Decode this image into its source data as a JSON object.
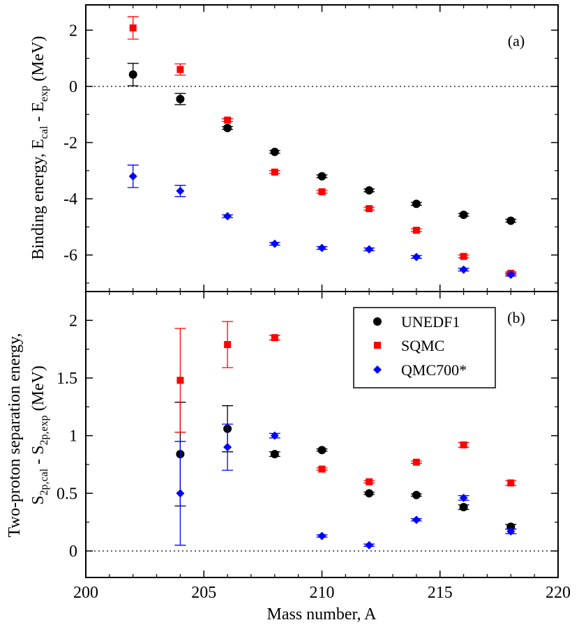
{
  "figure": {
    "xlabel": "Mass number, A",
    "xticks": [
      "200",
      "205",
      "210",
      "215",
      "220"
    ]
  },
  "chart_data": [
    {
      "type": "scatter",
      "panel_label": "(a)",
      "ylabel": {
        "main": "Binding energy, E",
        "sub1": "cal",
        "mid": " - E",
        "sub2": "exp",
        "tail": " (MeV)"
      },
      "xlim": [
        200,
        220
      ],
      "ylim": [
        -7.3,
        2.9
      ],
      "yticks": [
        "2",
        "0",
        "-2",
        "-4",
        "-6"
      ],
      "ytick_values": [
        2,
        0,
        -2,
        -4,
        -6
      ],
      "zero_line": true,
      "x": [
        202,
        204,
        206,
        208,
        210,
        212,
        214,
        216,
        218
      ],
      "series": [
        {
          "name": "UNEDF1",
          "color": "#000000",
          "marker": "circle",
          "values": [
            0.42,
            -0.45,
            -1.48,
            -2.33,
            -3.2,
            -3.7,
            -4.18,
            -4.57,
            -4.78
          ],
          "errors": [
            0.4,
            0.2,
            0.05,
            0.05,
            0.05,
            0.05,
            0.05,
            0.05,
            0.05
          ]
        },
        {
          "name": "SQMC",
          "color": "#ff0000",
          "marker": "square",
          "values": [
            2.08,
            0.6,
            -1.2,
            -3.05,
            -3.75,
            -4.35,
            -5.12,
            -6.05,
            -6.65
          ],
          "errors": [
            0.4,
            0.2,
            0.05,
            0.05,
            0.05,
            0.05,
            0.05,
            0.05,
            0.05
          ]
        },
        {
          "name": "QMC700*",
          "color": "#0000ff",
          "marker": "diamond",
          "values": [
            -3.2,
            -3.72,
            -4.62,
            -5.6,
            -5.75,
            -5.8,
            -6.07,
            -6.52,
            -6.7
          ],
          "errors": [
            0.4,
            0.2,
            0.05,
            0.05,
            0.05,
            0.05,
            0.05,
            0.05,
            0.05
          ]
        }
      ]
    },
    {
      "type": "scatter",
      "panel_label": "(b)",
      "ylabel": {
        "line1": "Two-proton separation energy,",
        "main": "S",
        "sub1": "2p,cal",
        "mid": " - S",
        "sub2": "2p,exp",
        "tail": " (MeV)"
      },
      "xlim": [
        200,
        220
      ],
      "ylim": [
        -0.23,
        2.25
      ],
      "yticks": [
        "2",
        "1.5",
        "1",
        "0.5",
        "0"
      ],
      "ytick_values": [
        2,
        1.5,
        1,
        0.5,
        0
      ],
      "zero_line": true,
      "legend": {
        "position": "top-right",
        "labels": [
          "UNEDF1",
          "SQMC",
          "QMC700*"
        ]
      },
      "x": [
        204,
        206,
        208,
        210,
        212,
        214,
        216,
        218
      ],
      "series": [
        {
          "name": "UNEDF1",
          "color": "#000000",
          "marker": "circle",
          "values": [
            0.84,
            1.06,
            0.84,
            0.875,
            0.5,
            0.485,
            0.38,
            0.21
          ],
          "errors": [
            0.45,
            0.2,
            0.02,
            0.01,
            0.01,
            0.01,
            0.02,
            0.02
          ]
        },
        {
          "name": "SQMC",
          "color": "#ff0000",
          "marker": "square",
          "values": [
            1.48,
            1.79,
            1.85,
            0.71,
            0.6,
            0.77,
            0.92,
            0.59
          ],
          "errors": [
            0.45,
            0.2,
            0.02,
            0.01,
            0.01,
            0.01,
            0.02,
            0.02
          ]
        },
        {
          "name": "QMC700*",
          "color": "#0000ff",
          "marker": "diamond",
          "values": [
            0.5,
            0.9,
            1.0,
            0.13,
            0.05,
            0.27,
            0.46,
            0.17
          ],
          "errors": [
            0.45,
            0.2,
            0.02,
            0.01,
            0.01,
            0.01,
            0.02,
            0.02
          ]
        }
      ]
    }
  ]
}
